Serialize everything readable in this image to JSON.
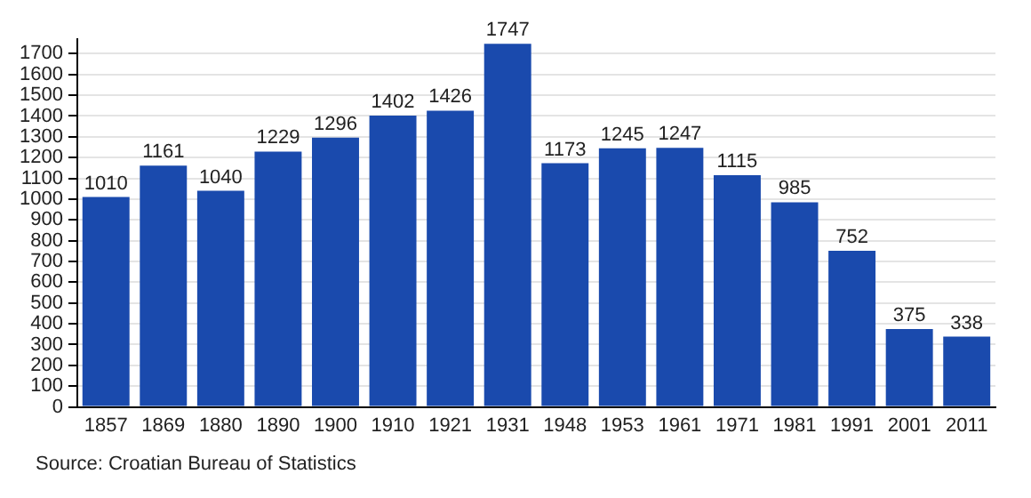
{
  "chart_data": {
    "type": "bar",
    "categories": [
      "1857",
      "1869",
      "1880",
      "1890",
      "1900",
      "1910",
      "1921",
      "1931",
      "1948",
      "1953",
      "1961",
      "1971",
      "1981",
      "1991",
      "2001",
      "2011"
    ],
    "values": [
      1010,
      1161,
      1040,
      1229,
      1296,
      1402,
      1426,
      1747,
      1173,
      1245,
      1247,
      1115,
      985,
      752,
      375,
      338
    ],
    "color": "#1a4aad",
    "data_labels": true,
    "grid": "y",
    "ylim": [
      0,
      1770
    ],
    "yticks": [
      0,
      100,
      200,
      300,
      400,
      500,
      600,
      700,
      800,
      900,
      1000,
      1100,
      1200,
      1300,
      1400,
      1500,
      1600,
      1700
    ],
    "annotations": [
      "Source: Croatian Bureau of Statistics"
    ]
  }
}
